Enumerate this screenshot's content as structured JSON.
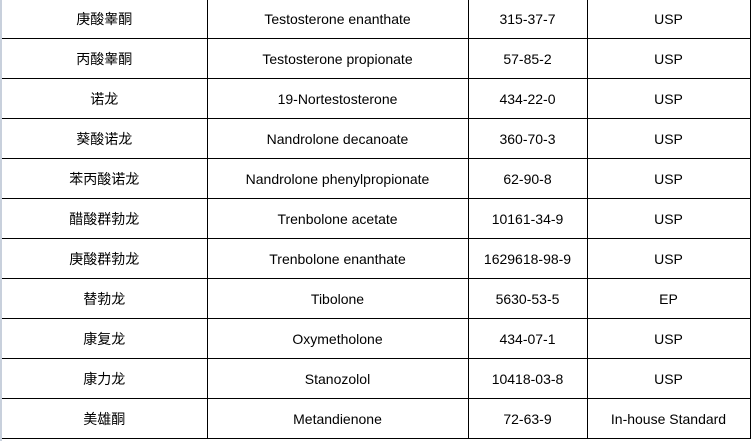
{
  "table": {
    "rows": [
      [
        "庚酸睾酮",
        "Testosterone enanthate",
        "315-37-7",
        "USP"
      ],
      [
        "丙酸睾酮",
        "Testosterone propionate",
        "57-85-2",
        "USP"
      ],
      [
        "诺龙",
        "19-Nortestosterone",
        "434-22-0",
        "USP"
      ],
      [
        "葵酸诺龙",
        "Nandrolone decanoate",
        "360-70-3",
        "USP"
      ],
      [
        "苯丙酸诺龙",
        "Nandrolone phenylpropionate",
        "62-90-8",
        "USP"
      ],
      [
        "醋酸群勃龙",
        "Trenbolone acetate",
        "10161-34-9",
        "USP"
      ],
      [
        "庚酸群勃龙",
        "Trenbolone enanthate",
        "1629618-98-9",
        "USP"
      ],
      [
        "替勃龙",
        "Tibolone",
        "5630-53-5",
        "EP"
      ],
      [
        "康复龙",
        "Oxymetholone",
        "434-07-1",
        "USP"
      ],
      [
        "康力龙",
        "Stanozolol",
        "10418-03-8",
        "USP"
      ],
      [
        "美雄酮",
        "Metandienone",
        "72-63-9",
        "In-house Standard"
      ]
    ]
  }
}
